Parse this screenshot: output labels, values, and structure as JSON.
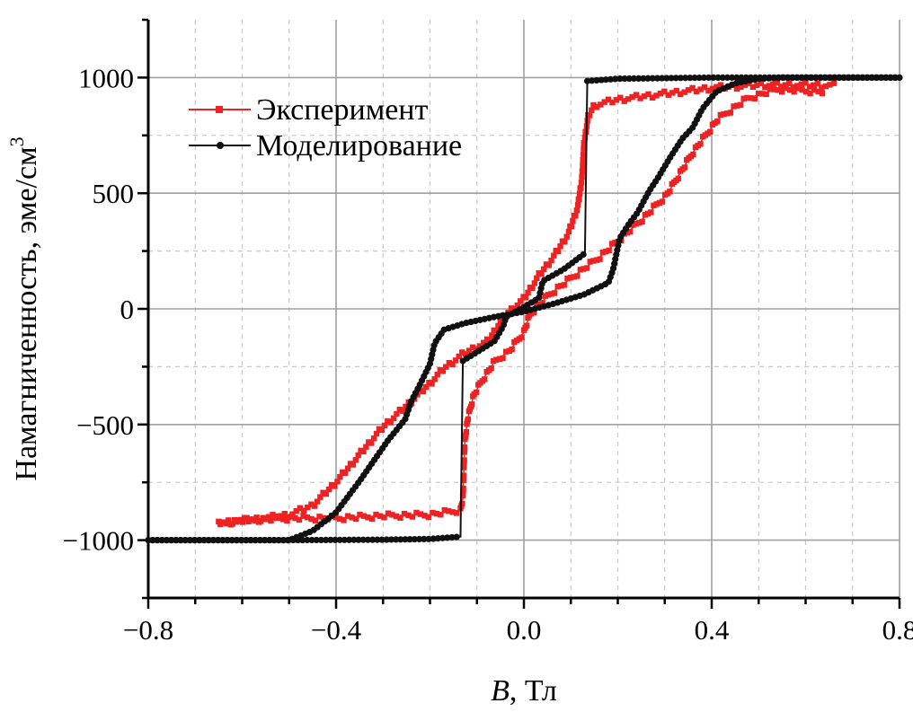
{
  "chart_data": {
    "type": "line",
    "title": "",
    "xlabel_var": "B",
    "xlabel_unit": ", Тл",
    "ylabel": "Намагниченность, эме/см",
    "ylabel_sup": "3",
    "xlim": [
      -0.8,
      0.8
    ],
    "ylim": [
      -1250,
      1250
    ],
    "x_ticks": [
      -0.8,
      -0.4,
      0.0,
      0.4,
      0.8
    ],
    "x_tick_labels": [
      "−0.8",
      "−0.4",
      "0.0",
      "0.4",
      "0.8"
    ],
    "y_ticks": [
      -1000,
      -500,
      0,
      500,
      1000
    ],
    "y_tick_labels": [
      "−1000",
      "−500",
      "0",
      "500",
      "1000"
    ],
    "grid": true,
    "legend_position": "top-left",
    "series": [
      {
        "name": "Эксперимент",
        "color": "#ee2222",
        "marker": "square",
        "branches": [
          [
            [
              -0.65,
              -930
            ],
            [
              -0.6,
              -915
            ],
            [
              -0.5,
              -905
            ],
            [
              -0.4,
              -905
            ],
            [
              -0.3,
              -895
            ],
            [
              -0.2,
              -890
            ],
            [
              -0.135,
              -870
            ],
            [
              -0.13,
              -820
            ],
            [
              -0.126,
              -580
            ],
            [
              -0.12,
              -478
            ],
            [
              -0.107,
              -373
            ],
            [
              -0.088,
              -307
            ],
            [
              -0.063,
              -230
            ],
            [
              -0.03,
              -180
            ],
            [
              0.0,
              -100
            ],
            [
              0.013,
              -23
            ],
            [
              0.05,
              55
            ],
            [
              0.1,
              132
            ],
            [
              0.16,
              222
            ],
            [
              0.204,
              300
            ],
            [
              0.255,
              393
            ],
            [
              0.305,
              495
            ],
            [
              0.36,
              677
            ],
            [
              0.413,
              820
            ],
            [
              0.476,
              910
            ],
            [
              0.54,
              950
            ],
            [
              0.64,
              938
            ]
          ],
          [
            [
              0.66,
              965
            ],
            [
              0.6,
              968
            ],
            [
              0.5,
              968
            ],
            [
              0.4,
              955
            ],
            [
              0.3,
              930
            ],
            [
              0.2,
              905
            ],
            [
              0.15,
              880
            ],
            [
              0.137,
              833
            ],
            [
              0.128,
              715
            ],
            [
              0.124,
              572
            ],
            [
              0.115,
              443
            ],
            [
              0.095,
              327
            ],
            [
              0.065,
              230
            ],
            [
              0.032,
              144
            ],
            [
              0.0,
              43
            ],
            [
              -0.044,
              -35
            ],
            [
              -0.076,
              -140
            ],
            [
              -0.126,
              -190
            ],
            [
              -0.17,
              -257
            ],
            [
              -0.2,
              -322
            ],
            [
              -0.253,
              -425
            ],
            [
              -0.3,
              -510
            ],
            [
              -0.35,
              -630
            ],
            [
              -0.4,
              -750
            ],
            [
              -0.45,
              -850
            ],
            [
              -0.5,
              -890
            ],
            [
              -0.55,
              -905
            ],
            [
              -0.65,
              -925
            ]
          ]
        ]
      },
      {
        "name": "Моделирование",
        "color": "#111111",
        "marker": "circle",
        "branches": [
          [
            [
              -0.8,
              -1000
            ],
            [
              -0.5,
              -1000
            ],
            [
              -0.3,
              -998
            ],
            [
              -0.2,
              -995
            ],
            [
              -0.135,
              -985
            ],
            [
              -0.13,
              -225
            ],
            [
              -0.063,
              -140
            ],
            [
              -0.044,
              -75
            ],
            [
              -0.038,
              -35
            ],
            [
              0.0,
              8
            ],
            [
              0.032,
              47
            ],
            [
              0.04,
              120
            ],
            [
              0.084,
              170
            ],
            [
              0.13,
              240
            ],
            [
              0.135,
              985
            ],
            [
              0.2,
              995
            ],
            [
              0.4,
              1000
            ],
            [
              0.8,
              1000
            ]
          ],
          [
            [
              0.8,
              1000
            ],
            [
              0.55,
              1000
            ],
            [
              0.5,
              995
            ],
            [
              0.45,
              975
            ],
            [
              0.41,
              940
            ],
            [
              0.38,
              865
            ],
            [
              0.36,
              785
            ],
            [
              0.337,
              735
            ],
            [
              0.31,
              650
            ],
            [
              0.286,
              568
            ],
            [
              0.267,
              510
            ],
            [
              0.242,
              416
            ],
            [
              0.223,
              365
            ],
            [
              0.204,
              305
            ],
            [
              0.19,
              170
            ],
            [
              0.18,
              113
            ],
            [
              0.128,
              62
            ],
            [
              0.065,
              23
            ],
            [
              0.0,
              -12
            ],
            [
              -0.063,
              -35
            ],
            [
              -0.126,
              -62
            ],
            [
              -0.17,
              -90
            ],
            [
              -0.19,
              -148
            ],
            [
              -0.2,
              -237
            ],
            [
              -0.22,
              -322
            ],
            [
              -0.24,
              -400
            ],
            [
              -0.253,
              -478
            ],
            [
              -0.29,
              -570
            ],
            [
              -0.35,
              -745
            ],
            [
              -0.4,
              -880
            ],
            [
              -0.45,
              -960
            ],
            [
              -0.5,
              -1000
            ],
            [
              -0.8,
              -1000
            ]
          ]
        ]
      }
    ]
  }
}
